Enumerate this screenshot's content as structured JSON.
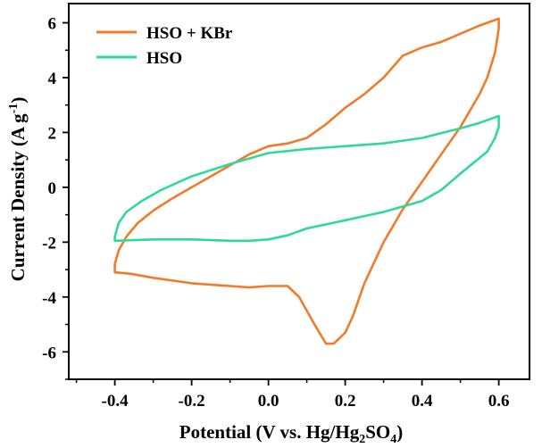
{
  "chart_data": {
    "type": "line",
    "title": "",
    "xlabel_parts": [
      "Potential (V vs. Hg/Hg",
      "2",
      "SO",
      "4",
      ")"
    ],
    "ylabel_parts": [
      "Current Density (A g",
      "-1",
      ")"
    ],
    "xlim": [
      -0.52,
      0.68
    ],
    "ylim": [
      -7,
      6.7
    ],
    "xticks": [
      -0.4,
      -0.2,
      0.0,
      0.2,
      0.4,
      0.6
    ],
    "xtick_labels": [
      "-0.4",
      "-0.2",
      "0.0",
      "0.2",
      "0.4",
      "0.6"
    ],
    "yticks": [
      -6,
      -4,
      -2,
      0,
      2,
      4,
      6
    ],
    "ytick_labels": [
      "-6",
      "-4",
      "-2",
      "0",
      "2",
      "4",
      "6"
    ],
    "grid": false,
    "legend_position": "top-left",
    "series": [
      {
        "name": "HSO + KBr",
        "color": "#f07c2a",
        "points": [
          [
            -0.4,
            -2.8
          ],
          [
            -0.39,
            -2.3
          ],
          [
            -0.37,
            -1.8
          ],
          [
            -0.34,
            -1.3
          ],
          [
            -0.3,
            -0.85
          ],
          [
            -0.25,
            -0.4
          ],
          [
            -0.2,
            0.0
          ],
          [
            -0.15,
            0.4
          ],
          [
            -0.1,
            0.8
          ],
          [
            -0.05,
            1.2
          ],
          [
            0.0,
            1.5
          ],
          [
            0.05,
            1.6
          ],
          [
            0.1,
            1.8
          ],
          [
            0.15,
            2.3
          ],
          [
            0.2,
            2.9
          ],
          [
            0.25,
            3.4
          ],
          [
            0.3,
            4.0
          ],
          [
            0.35,
            4.8
          ],
          [
            0.4,
            5.1
          ],
          [
            0.45,
            5.3
          ],
          [
            0.5,
            5.6
          ],
          [
            0.55,
            5.9
          ],
          [
            0.6,
            6.15
          ],
          [
            0.6,
            5.8
          ],
          [
            0.59,
            4.9
          ],
          [
            0.57,
            4.0
          ],
          [
            0.55,
            3.4
          ],
          [
            0.5,
            2.2
          ],
          [
            0.45,
            1.2
          ],
          [
            0.4,
            0.2
          ],
          [
            0.35,
            -0.8
          ],
          [
            0.3,
            -2.0
          ],
          [
            0.25,
            -3.5
          ],
          [
            0.22,
            -4.7
          ],
          [
            0.2,
            -5.3
          ],
          [
            0.17,
            -5.7
          ],
          [
            0.15,
            -5.7
          ],
          [
            0.12,
            -5.0
          ],
          [
            0.08,
            -4.0
          ],
          [
            0.05,
            -3.6
          ],
          [
            0.0,
            -3.6
          ],
          [
            -0.05,
            -3.65
          ],
          [
            -0.1,
            -3.6
          ],
          [
            -0.2,
            -3.5
          ],
          [
            -0.3,
            -3.3
          ],
          [
            -0.36,
            -3.15
          ],
          [
            -0.4,
            -3.1
          ],
          [
            -0.4,
            -2.8
          ]
        ]
      },
      {
        "name": "HSO",
        "color": "#2ed99a",
        "points": [
          [
            -0.4,
            -1.8
          ],
          [
            -0.39,
            -1.3
          ],
          [
            -0.37,
            -0.9
          ],
          [
            -0.33,
            -0.5
          ],
          [
            -0.28,
            -0.1
          ],
          [
            -0.2,
            0.4
          ],
          [
            -0.1,
            0.85
          ],
          [
            0.0,
            1.25
          ],
          [
            0.1,
            1.4
          ],
          [
            0.2,
            1.5
          ],
          [
            0.3,
            1.6
          ],
          [
            0.4,
            1.8
          ],
          [
            0.5,
            2.15
          ],
          [
            0.55,
            2.35
          ],
          [
            0.6,
            2.6
          ],
          [
            0.6,
            2.2
          ],
          [
            0.59,
            1.8
          ],
          [
            0.57,
            1.3
          ],
          [
            0.5,
            0.5
          ],
          [
            0.45,
            -0.1
          ],
          [
            0.4,
            -0.5
          ],
          [
            0.3,
            -0.9
          ],
          [
            0.2,
            -1.2
          ],
          [
            0.1,
            -1.5
          ],
          [
            0.05,
            -1.75
          ],
          [
            0.0,
            -1.9
          ],
          [
            -0.05,
            -1.95
          ],
          [
            -0.1,
            -1.95
          ],
          [
            -0.2,
            -1.9
          ],
          [
            -0.3,
            -1.9
          ],
          [
            -0.4,
            -1.95
          ],
          [
            -0.4,
            -1.8
          ]
        ]
      }
    ]
  }
}
